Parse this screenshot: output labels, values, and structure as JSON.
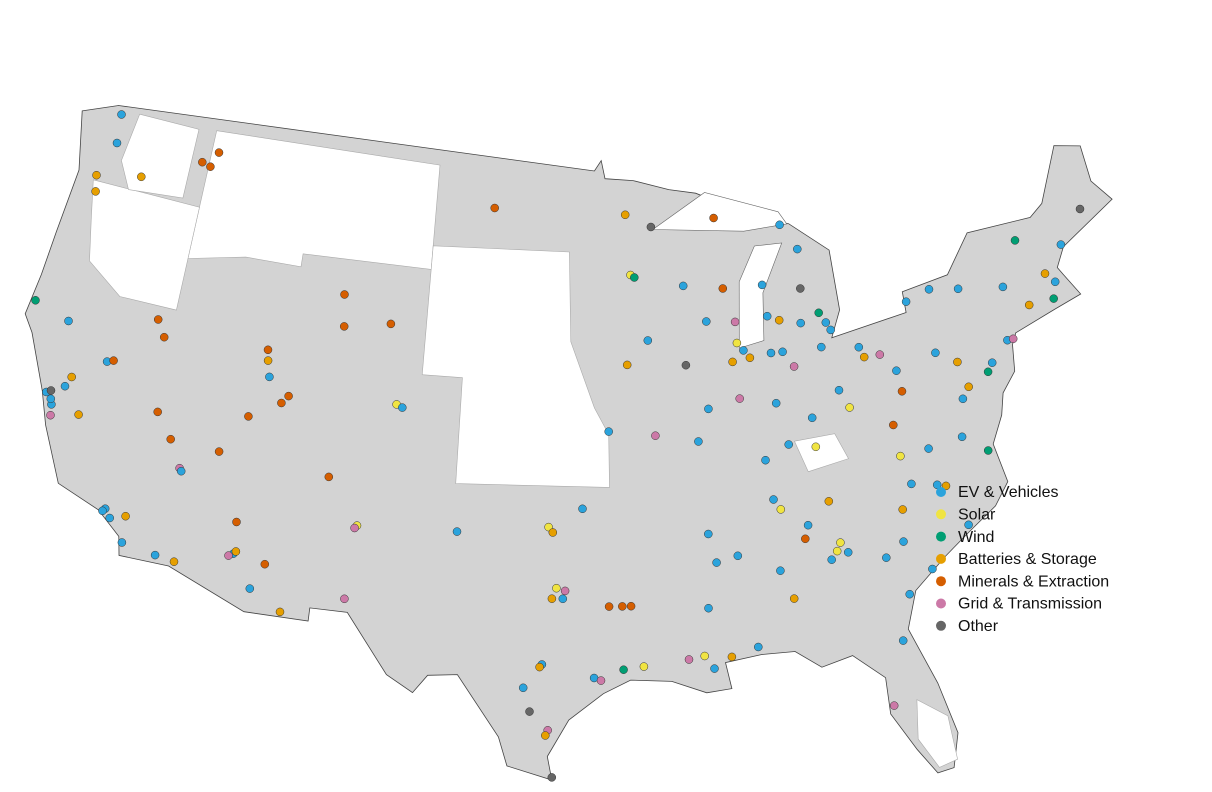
{
  "legend": [
    {
      "name": "EV & Vehicles",
      "color": "#2ba3dc"
    },
    {
      "name": "Solar",
      "color": "#f0e442"
    },
    {
      "name": "Wind",
      "color": "#009e73"
    },
    {
      "name": "Batteries & Storage",
      "color": "#e69f00"
    },
    {
      "name": "Minerals & Extraction",
      "color": "#d55e00"
    },
    {
      "name": "Grid & Transmission",
      "color": "#cc79a7"
    },
    {
      "name": "Other",
      "color": "#666666"
    }
  ],
  "points": [
    [
      -122.3,
      47.6,
      0
    ],
    [
      -122.7,
      45.6,
      3
    ],
    [
      -122.9,
      46.2,
      3
    ],
    [
      -117.4,
      47.7,
      4
    ],
    [
      -116.6,
      48.2,
      4
    ],
    [
      -116.9,
      47.6,
      4
    ],
    [
      -124.1,
      41.0,
      2
    ],
    [
      -122.3,
      37.8,
      0
    ],
    [
      -121.9,
      37.4,
      0
    ],
    [
      -122.0,
      37.6,
      0
    ],
    [
      -121.3,
      38.6,
      3
    ],
    [
      -121.8,
      37.0,
      5
    ],
    [
      -122.1,
      37.9,
      6
    ],
    [
      -121.5,
      38.2,
      0
    ],
    [
      -120.5,
      37.3,
      3
    ],
    [
      -119.8,
      39.5,
      0
    ],
    [
      -119.5,
      39.6,
      4
    ],
    [
      -117.3,
      40.9,
      4
    ],
    [
      -117.8,
      41.5,
      4
    ],
    [
      -116.8,
      38.1,
      4
    ],
    [
      -115.9,
      37.2,
      4
    ],
    [
      -115.2,
      36.2,
      5
    ],
    [
      -115.1,
      36.1,
      0
    ],
    [
      -118.2,
      34.1,
      0
    ],
    [
      -118.3,
      34.0,
      0
    ],
    [
      -117.9,
      33.8,
      0
    ],
    [
      -117.2,
      34.0,
      3
    ],
    [
      -117.1,
      33.0,
      0
    ],
    [
      -115.5,
      32.8,
      0
    ],
    [
      -114.6,
      32.7,
      3
    ],
    [
      -112.0,
      33.4,
      0
    ],
    [
      -111.9,
      33.5,
      3
    ],
    [
      -112.2,
      33.3,
      5
    ],
    [
      -111.0,
      32.2,
      0
    ],
    [
      -112.1,
      34.6,
      4
    ],
    [
      -110.5,
      33.2,
      4
    ],
    [
      -109.5,
      31.5,
      3
    ],
    [
      -111.9,
      40.8,
      3
    ],
    [
      -112.0,
      41.2,
      4
    ],
    [
      -111.7,
      40.2,
      0
    ],
    [
      -110.6,
      39.6,
      4
    ],
    [
      -110.9,
      39.3,
      4
    ],
    [
      -112.4,
      38.6,
      4
    ],
    [
      -113.5,
      37.1,
      4
    ],
    [
      -108.5,
      43.7,
      4
    ],
    [
      -108.3,
      42.5,
      4
    ],
    [
      -105.9,
      42.8,
      4
    ],
    [
      -100.8,
      47.5,
      4
    ],
    [
      -106.5,
      35.1,
      1
    ],
    [
      -106.6,
      35.0,
      5
    ],
    [
      -105.2,
      39.8,
      1
    ],
    [
      -104.9,
      39.7,
      0
    ],
    [
      -108.1,
      36.8,
      4
    ],
    [
      -106.7,
      32.3,
      5
    ],
    [
      -101.8,
      35.2,
      0
    ],
    [
      -97.5,
      35.5,
      1
    ],
    [
      -97.3,
      35.3,
      3
    ],
    [
      -95.9,
      36.2,
      0
    ],
    [
      -96.8,
      32.8,
      0
    ],
    [
      -97.3,
      32.8,
      3
    ],
    [
      -96.7,
      33.1,
      5
    ],
    [
      -97.1,
      33.2,
      1
    ],
    [
      -94.7,
      32.5,
      4
    ],
    [
      -94.1,
      32.5,
      4
    ],
    [
      -93.7,
      32.5,
      4
    ],
    [
      -97.7,
      30.3,
      0
    ],
    [
      -97.8,
      30.2,
      3
    ],
    [
      -98.5,
      29.4,
      0
    ],
    [
      -95.4,
      29.8,
      0
    ],
    [
      -95.1,
      29.7,
      5
    ],
    [
      -94.1,
      30.1,
      2
    ],
    [
      -97.4,
      27.8,
      5
    ],
    [
      -97.2,
      26.0,
      6
    ],
    [
      -97.5,
      27.6,
      3
    ],
    [
      -98.2,
      28.5,
      6
    ],
    [
      -93.2,
      30.2,
      1
    ],
    [
      -91.2,
      30.4,
      5
    ],
    [
      -90.1,
      30.0,
      0
    ],
    [
      -90.5,
      30.5,
      1
    ],
    [
      -89.3,
      30.4,
      3
    ],
    [
      -88.1,
      30.7,
      0
    ],
    [
      -90.2,
      32.3,
      0
    ],
    [
      -89.7,
      34.0,
      0
    ],
    [
      -90.0,
      35.1,
      0
    ],
    [
      -86.8,
      36.2,
      0
    ],
    [
      -86.5,
      35.8,
      1
    ],
    [
      -85.3,
      35.1,
      0
    ],
    [
      -84.2,
      35.9,
      3
    ],
    [
      -83.9,
      34.3,
      1
    ],
    [
      -84.4,
      33.7,
      0
    ],
    [
      -84.1,
      34.0,
      1
    ],
    [
      -83.6,
      33.9,
      0
    ],
    [
      -81.9,
      33.5,
      0
    ],
    [
      -81.0,
      34.0,
      0
    ],
    [
      -80.8,
      35.2,
      3
    ],
    [
      -80.2,
      36.1,
      0
    ],
    [
      -79.0,
      35.9,
      0
    ],
    [
      -78.6,
      35.8,
      3
    ],
    [
      -77.4,
      37.5,
      0
    ],
    [
      -76.3,
      36.8,
      2
    ],
    [
      -77.9,
      34.2,
      0
    ],
    [
      -79.9,
      32.8,
      0
    ],
    [
      -81.1,
      32.0,
      0
    ],
    [
      -81.7,
      30.3,
      0
    ],
    [
      -82.5,
      27.9,
      5
    ],
    [
      -86.8,
      33.5,
      0
    ],
    [
      -86.3,
      32.4,
      3
    ],
    [
      -85.5,
      34.6,
      4
    ],
    [
      -88.7,
      34.2,
      0
    ],
    [
      -87.0,
      37.7,
      0
    ],
    [
      -85.8,
      38.2,
      0
    ],
    [
      -84.5,
      38.0,
      1
    ],
    [
      -84.5,
      39.1,
      0
    ],
    [
      -83.0,
      40.0,
      0
    ],
    [
      -81.7,
      41.5,
      0
    ],
    [
      -81.5,
      41.1,
      3
    ],
    [
      -80.7,
      41.1,
      5
    ],
    [
      -80.0,
      40.4,
      0
    ],
    [
      -79.9,
      39.6,
      4
    ],
    [
      -82.6,
      39.3,
      1
    ],
    [
      -83.6,
      41.7,
      0
    ],
    [
      -83.0,
      42.3,
      0
    ],
    [
      -83.2,
      42.6,
      0
    ],
    [
      -84.5,
      42.7,
      0
    ],
    [
      -85.6,
      42.9,
      3
    ],
    [
      -86.2,
      43.1,
      0
    ],
    [
      -86.3,
      44.3,
      0
    ],
    [
      -84.3,
      44.0,
      6
    ],
    [
      -83.5,
      43.0,
      2
    ],
    [
      -84.2,
      45.5,
      0
    ],
    [
      -85.6,
      41.7,
      0
    ],
    [
      -86.2,
      41.7,
      0
    ],
    [
      -87.6,
      41.9,
      0
    ],
    [
      -87.9,
      42.2,
      1
    ],
    [
      -88.2,
      41.5,
      3
    ],
    [
      -89.6,
      39.8,
      0
    ],
    [
      -88.0,
      40.1,
      5
    ],
    [
      -90.2,
      38.6,
      0
    ],
    [
      -92.3,
      38.9,
      5
    ],
    [
      -94.6,
      39.1,
      0
    ],
    [
      -93.6,
      41.6,
      3
    ],
    [
      -92.5,
      42.5,
      0
    ],
    [
      -90.6,
      41.5,
      6
    ],
    [
      -89.4,
      43.1,
      0
    ],
    [
      -87.9,
      43.0,
      5
    ],
    [
      -88.4,
      44.3,
      4
    ],
    [
      -90.5,
      44.5,
      0
    ],
    [
      -93.3,
      45.0,
      1
    ],
    [
      -93.1,
      44.9,
      2
    ],
    [
      -92.1,
      46.8,
      6
    ],
    [
      -93.5,
      47.3,
      3
    ],
    [
      -88.6,
      47.0,
      4
    ],
    [
      -85.0,
      46.5,
      0
    ],
    [
      -86.2,
      39.8,
      0
    ],
    [
      -85.1,
      41.1,
      5
    ],
    [
      -87.3,
      41.6,
      3
    ],
    [
      -77.0,
      38.9,
      0
    ],
    [
      -76.6,
      39.3,
      3
    ],
    [
      -75.2,
      40.0,
      0
    ],
    [
      -75.5,
      39.7,
      2
    ],
    [
      -74.2,
      40.7,
      0
    ],
    [
      -73.9,
      40.7,
      5
    ],
    [
      -73.8,
      42.7,
      0
    ],
    [
      -76.1,
      43.0,
      0
    ],
    [
      -77.6,
      43.2,
      0
    ],
    [
      -78.9,
      42.9,
      0
    ],
    [
      -72.7,
      41.8,
      3
    ],
    [
      -71.4,
      41.8,
      2
    ],
    [
      -71.1,
      42.4,
      0
    ],
    [
      -71.5,
      42.8,
      3
    ],
    [
      -72.6,
      44.3,
      2
    ],
    [
      -70.3,
      43.7,
      0
    ],
    [
      -68.8,
      44.8,
      6
    ],
    [
      -77.9,
      40.8,
      0
    ],
    [
      -76.9,
      40.3,
      3
    ],
    [
      -79.1,
      37.3,
      0
    ],
    [
      -80.5,
      37.2,
      1
    ],
    [
      -80.6,
      38.4,
      4
    ],
    [
      -122.5,
      48.7,
      0
    ],
    [
      -120.5,
      46.6,
      3
    ],
    [
      -122.2,
      40.6,
      0
    ]
  ]
}
